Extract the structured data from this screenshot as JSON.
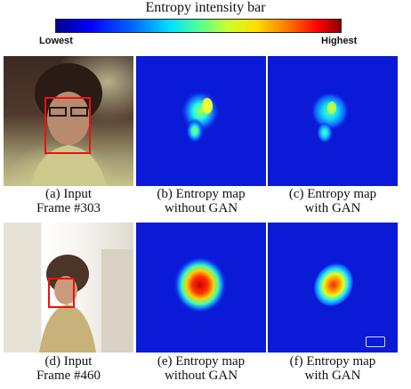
{
  "colorbar": {
    "title": "Entropy intensity bar",
    "low_label": "Lowest",
    "high_label": "Highest"
  },
  "row1": {
    "input": {
      "caption_line1": "(a) Input",
      "caption_line2": "Frame #303"
    },
    "no_gan": {
      "caption_line1": "(b) Entropy map",
      "caption_line2": "without GAN"
    },
    "with_gan": {
      "caption_line1": "(c) Entropy map",
      "caption_line2": "with GAN"
    }
  },
  "row2": {
    "input": {
      "caption_line1": "(d) Input",
      "caption_line2": "Frame #460"
    },
    "no_gan": {
      "caption_line1": "(e) Entropy map",
      "caption_line2": "without GAN"
    },
    "with_gan": {
      "caption_line1": "(f) Entropy map",
      "caption_line2": "with GAN"
    }
  },
  "colors": {
    "map_background": "#0a1ad6",
    "face_box": "#ee1111"
  }
}
